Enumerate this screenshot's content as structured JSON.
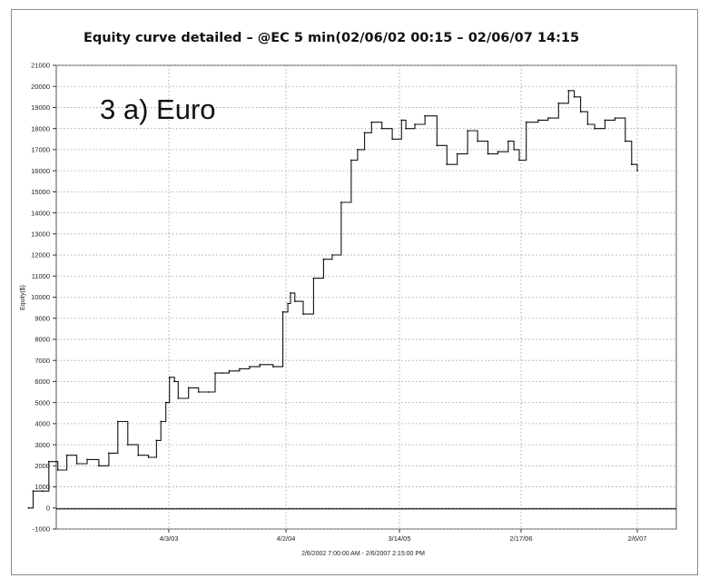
{
  "chart_data": {
    "type": "line",
    "title": "Equity curve detailed – @EC 5 min(02/06/02 00:15 – 02/06/07 14:15",
    "panel_label": "3 a)  Euro",
    "xlabel": "2/6/2002 7:00:00 AM - 2/6/2007 2:15:00 PM",
    "ylabel": "Equity($)",
    "x_ticks": [
      "4/3/03",
      "4/2/04",
      "3/14/05",
      "2/17/06",
      "2/6/07"
    ],
    "y_ticks": [
      "-1000",
      "0",
      "1000",
      "2000",
      "3000",
      "4000",
      "5000",
      "6000",
      "7000",
      "8000",
      "9000",
      "10000",
      "11000",
      "12000",
      "13000",
      "14000",
      "15000",
      "16000",
      "17000",
      "18000",
      "19000",
      "20000",
      "21000"
    ],
    "ylim": [
      -1000,
      21000
    ],
    "grid": true,
    "series": [
      {
        "x": [
          "2002-02-06",
          "2002-02-20",
          "2002-03-20",
          "2002-04-08",
          "2002-05-05",
          "2002-06-01",
          "2002-07-01",
          "2002-08-01",
          "2002-09-05",
          "2002-10-05",
          "2002-11-01",
          "2002-12-01",
          "2003-01-01",
          "2003-02-01",
          "2003-02-25",
          "2003-03-10",
          "2003-03-25",
          "2003-04-05",
          "2003-04-20",
          "2003-05-01",
          "2003-06-01",
          "2003-07-01",
          "2003-08-01",
          "2003-08-20",
          "2003-09-10",
          "2003-10-01",
          "2003-11-01",
          "2003-12-01",
          "2004-01-01",
          "2004-02-10",
          "2004-03-10",
          "2004-03-25",
          "2004-04-02",
          "2004-04-15",
          "2004-05-10",
          "2004-06-10",
          "2004-07-10",
          "2004-08-05",
          "2004-09-01",
          "2004-10-01",
          "2004-10-20",
          "2004-11-10",
          "2004-12-01",
          "2005-01-01",
          "2005-02-01",
          "2005-03-01",
          "2005-03-14",
          "2005-04-10",
          "2005-05-10",
          "2005-06-15",
          "2005-07-15",
          "2005-08-15",
          "2005-09-15",
          "2005-10-15",
          "2005-11-15",
          "2005-12-15",
          "2006-01-15",
          "2006-02-01",
          "2006-02-17",
          "2006-03-10",
          "2006-04-15",
          "2006-05-15",
          "2006-06-15",
          "2006-07-15",
          "2006-08-01",
          "2006-08-20",
          "2006-09-10",
          "2006-10-01",
          "2006-11-01",
          "2006-12-01",
          "2007-01-01",
          "2007-01-20",
          "2007-02-06"
        ],
        "y": [
          0,
          800,
          800,
          2200,
          1800,
          2500,
          2100,
          2300,
          2000,
          2600,
          4100,
          3000,
          2500,
          2400,
          3200,
          4100,
          5000,
          6200,
          6000,
          5200,
          5700,
          5500,
          5500,
          6400,
          6400,
          6500,
          6600,
          6700,
          6800,
          6700,
          9300,
          9700,
          10200,
          9800,
          9200,
          10900,
          11800,
          12000,
          14500,
          16500,
          17000,
          17800,
          18300,
          18000,
          17500,
          18400,
          18000,
          18200,
          18600,
          17200,
          16300,
          16800,
          17900,
          17400,
          16800,
          16900,
          17400,
          17000,
          16500,
          18300,
          18400,
          18500,
          19200,
          19800,
          19500,
          18800,
          18200,
          18000,
          18400,
          18500,
          17400,
          16300,
          16000
        ]
      }
    ]
  }
}
